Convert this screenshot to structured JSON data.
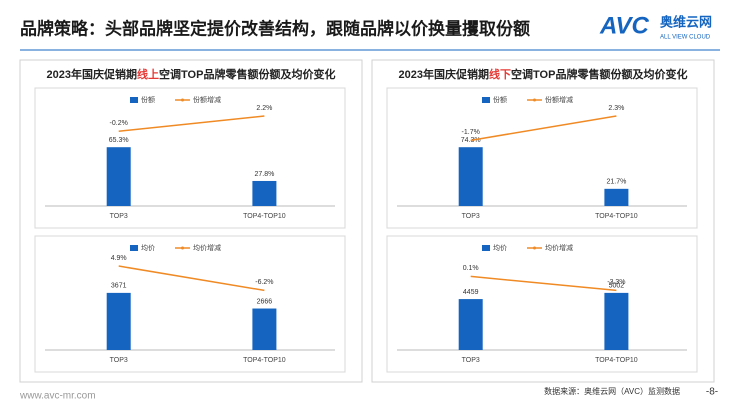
{
  "header": {
    "title": "品牌策略：头部品牌坚定提价改善结构，跟随品牌以价换量攫取份额",
    "logo": {
      "mark": "AVC",
      "name": "奥维云网",
      "tagline": "ALL VIEW CLOUD"
    }
  },
  "panels": [
    {
      "title_parts": [
        "2023年国庆促销期",
        "线上",
        "空调TOP品牌零售额份额及均价变化"
      ]
    },
    {
      "title_parts": [
        "2023年国庆促销期",
        "线下",
        "空调TOP品牌零售额份额及均价变化"
      ]
    }
  ],
  "chart_data": [
    {
      "type": "bar_line",
      "categories": [
        "TOP3",
        "TOP4-TOP10"
      ],
      "series": [
        {
          "name": "份额",
          "color": "#1565c0",
          "values": [
            65.3,
            27.8
          ],
          "value_labels": [
            "65.3%",
            "27.8%"
          ]
        },
        {
          "name": "份额增减",
          "type": "line",
          "color": "#f08a24",
          "values": [
            -0.2,
            2.2
          ],
          "value_labels": [
            "-0.2%",
            "2.2%"
          ]
        }
      ]
    },
    {
      "type": "bar_line",
      "categories": [
        "TOP3",
        "TOP4-TOP10"
      ],
      "series": [
        {
          "name": "均价",
          "color": "#1565c0",
          "values": [
            3671,
            2666
          ]
        },
        {
          "name": "均价增减",
          "type": "line",
          "color": "#f08a24",
          "values": [
            4.9,
            -6.2
          ],
          "value_labels": [
            "4.9%",
            "-6.2%"
          ]
        }
      ]
    },
    {
      "type": "bar_line",
      "categories": [
        "TOP3",
        "TOP4-TOP10"
      ],
      "series": [
        {
          "name": "份额",
          "color": "#1565c0",
          "values": [
            74.3,
            21.7
          ],
          "value_labels": [
            "74.3%",
            "21.7%"
          ]
        },
        {
          "name": "份额增减",
          "type": "line",
          "color": "#f08a24",
          "values": [
            -1.7,
            2.3
          ],
          "value_labels": [
            "-1.7%",
            "2.3%"
          ]
        }
      ]
    },
    {
      "type": "bar_line",
      "categories": [
        "TOP3",
        "TOP4-TOP10"
      ],
      "series": [
        {
          "name": "均价",
          "color": "#1565c0",
          "values": [
            4459,
            5002
          ]
        },
        {
          "name": "均价增减",
          "type": "line",
          "color": "#f08a24",
          "values": [
            0.1,
            -3.3
          ],
          "value_labels": [
            "0.1%",
            "-3.3%"
          ]
        }
      ]
    }
  ],
  "footer": {
    "url": "www.avc-mr.com",
    "source": "数据来源：奥维云网（AVC）监测数据",
    "page": "-8-"
  }
}
